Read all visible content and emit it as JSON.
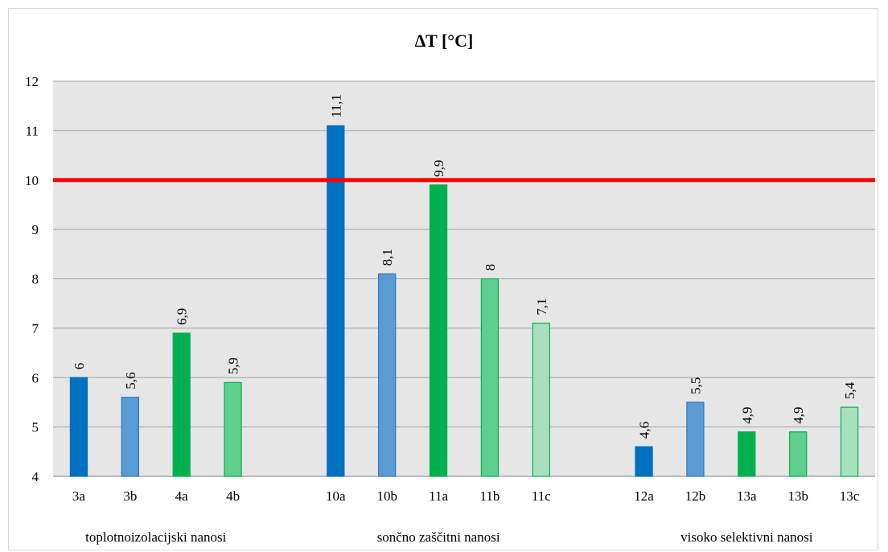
{
  "chart_data": {
    "type": "bar",
    "title": "∆T [°C]",
    "ylim": [
      4,
      12
    ],
    "yticks": [
      4,
      5,
      6,
      7,
      8,
      9,
      10,
      11,
      12
    ],
    "grid": true,
    "reference_line": {
      "value": 10,
      "color": "#ff0000"
    },
    "groups": [
      {
        "label": "toplotnoizolacijski nanosi",
        "bars": [
          {
            "category": "3a",
            "value": 6,
            "label": "6",
            "fill": "#0070c0",
            "stroke": "#0070c0"
          },
          {
            "category": "3b",
            "value": 5.6,
            "label": "5,6",
            "fill": "#5b9bd5",
            "stroke": "#2e75b6"
          },
          {
            "category": "4a",
            "value": 6.9,
            "label": "6,9",
            "fill": "#00b050",
            "stroke": "#00b050"
          },
          {
            "category": "4b",
            "value": 5.9,
            "label": "5,9",
            "fill": "#5ecf8c",
            "stroke": "#00b050"
          }
        ]
      },
      {
        "label": "sončno zaščitni nanosi",
        "bars": [
          {
            "category": "10a",
            "value": 11.1,
            "label": "11,1",
            "fill": "#0070c0",
            "stroke": "#0070c0"
          },
          {
            "category": "10b",
            "value": 8.1,
            "label": "8,1",
            "fill": "#5b9bd5",
            "stroke": "#2e75b6"
          },
          {
            "category": "11a",
            "value": 9.9,
            "label": "9,9",
            "fill": "#00b050",
            "stroke": "#00b050"
          },
          {
            "category": "11b",
            "value": 8,
            "label": "8",
            "fill": "#5ecf8c",
            "stroke": "#00b050"
          },
          {
            "category": "11c",
            "value": 7.1,
            "label": "7,1",
            "fill": "#a9dfbf",
            "stroke": "#00b050"
          }
        ]
      },
      {
        "label": "visoko selektivni nanosi",
        "bars": [
          {
            "category": "12a",
            "value": 4.6,
            "label": "4,6",
            "fill": "#0070c0",
            "stroke": "#0070c0"
          },
          {
            "category": "12b",
            "value": 5.5,
            "label": "5,5",
            "fill": "#5b9bd5",
            "stroke": "#2e75b6"
          },
          {
            "category": "13a",
            "value": 4.9,
            "label": "4,9",
            "fill": "#00b050",
            "stroke": "#00b050"
          },
          {
            "category": "13b",
            "value": 4.9,
            "label": "4,9",
            "fill": "#5ecf8c",
            "stroke": "#00b050"
          },
          {
            "category": "13c",
            "value": 5.4,
            "label": "5,4",
            "fill": "#a9dfbf",
            "stroke": "#00b050"
          }
        ]
      }
    ]
  }
}
